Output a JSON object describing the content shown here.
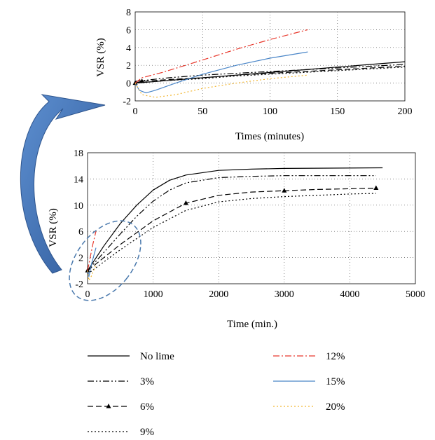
{
  "chart_data": [
    {
      "type": "line",
      "xlabel": "Times (minutes)",
      "ylabel": "VSR (%)",
      "xlim": [
        0,
        200
      ],
      "ylim": [
        -2,
        8
      ],
      "xticks": [
        0,
        50,
        100,
        150,
        200
      ],
      "yticks": [
        -2,
        0,
        2,
        4,
        6,
        8
      ],
      "grid": "dotted",
      "series": [
        {
          "name": "No lime",
          "x": [
            0,
            25,
            50,
            75,
            100,
            125,
            150,
            175,
            200
          ],
          "y": [
            0,
            0.3,
            0.6,
            0.9,
            1.2,
            1.5,
            1.8,
            2.1,
            2.4
          ]
        },
        {
          "name": "3%",
          "x": [
            0,
            25,
            50,
            75,
            100,
            125,
            150,
            175,
            200
          ],
          "y": [
            0.2,
            0.6,
            0.9,
            1.1,
            1.3,
            1.5,
            1.7,
            1.9,
            2.1
          ]
        },
        {
          "name": "6%",
          "x": [
            0,
            5,
            25,
            50,
            75,
            100,
            125,
            150,
            175,
            200
          ],
          "y": [
            0,
            0.2,
            0.4,
            0.6,
            0.9,
            1.1,
            1.3,
            1.5,
            1.7,
            1.9
          ]
        },
        {
          "name": "9%",
          "x": [
            0,
            25,
            50,
            75,
            100,
            125,
            150,
            175,
            200
          ],
          "y": [
            0,
            0.3,
            0.5,
            0.8,
            1.0,
            1.2,
            1.4,
            1.6,
            1.8
          ]
        },
        {
          "name": "12%",
          "x": [
            0,
            5,
            20,
            50,
            75,
            100,
            128
          ],
          "y": [
            0,
            0.6,
            1.2,
            2.6,
            3.8,
            4.9,
            6.0
          ]
        },
        {
          "name": "15%",
          "x": [
            0,
            3,
            8,
            15,
            30,
            50,
            75,
            100,
            128
          ],
          "y": [
            0,
            -0.8,
            -1.1,
            -0.8,
            0.0,
            1.0,
            2.0,
            2.8,
            3.5
          ]
        },
        {
          "name": "20%",
          "x": [
            0,
            5,
            15,
            30,
            50,
            75,
            100,
            128
          ],
          "y": [
            0,
            -1.3,
            -1.6,
            -1.3,
            -0.6,
            0.0,
            0.5,
            0.9
          ]
        }
      ]
    },
    {
      "type": "line",
      "xlabel": "Time (min.)",
      "ylabel": "VSR (%)",
      "xlim": [
        0,
        5000
      ],
      "ylim": [
        -2,
        18
      ],
      "xticks": [
        0,
        1000,
        2000,
        3000,
        4000,
        5000
      ],
      "yticks": [
        -2,
        2,
        6,
        10,
        14,
        18
      ],
      "grid": "dotted",
      "series": [
        {
          "name": "No lime",
          "x": [
            0,
            250,
            500,
            750,
            1000,
            1250,
            1500,
            2000,
            2500,
            3000,
            4500
          ],
          "y": [
            0,
            3.8,
            7.2,
            10.0,
            12.3,
            13.8,
            14.6,
            15.3,
            15.5,
            15.6,
            15.7
          ]
        },
        {
          "name": "3%",
          "x": [
            0,
            250,
            500,
            750,
            1000,
            1250,
            1500,
            2000,
            2500,
            3000,
            4400
          ],
          "y": [
            0,
            2.8,
            5.6,
            8.3,
            10.6,
            12.3,
            13.4,
            14.2,
            14.4,
            14.5,
            14.5
          ]
        },
        {
          "name": "6%",
          "x": [
            0,
            500,
            1000,
            1500,
            2000,
            2500,
            3000,
            3500,
            4000,
            4400
          ],
          "y": [
            0,
            4.0,
            7.6,
            10.3,
            11.5,
            12.0,
            12.2,
            12.4,
            12.5,
            12.6
          ]
        },
        {
          "name": "9%",
          "x": [
            0,
            500,
            1000,
            1500,
            2000,
            2500,
            3000,
            3500,
            4000,
            4400
          ],
          "y": [
            -0.5,
            3.2,
            6.6,
            9.2,
            10.5,
            11.0,
            11.3,
            11.5,
            11.7,
            11.8
          ]
        },
        {
          "name": "12%",
          "x": [
            0,
            40,
            80,
            128
          ],
          "y": [
            0,
            2.0,
            4.0,
            6.0
          ]
        },
        {
          "name": "15%",
          "x": [
            0,
            20,
            60,
            128
          ],
          "y": [
            0,
            -0.9,
            1.0,
            3.5
          ]
        },
        {
          "name": "20%",
          "x": [
            0,
            20,
            60,
            128
          ],
          "y": [
            0,
            -1.5,
            -0.8,
            0.9
          ]
        }
      ]
    }
  ],
  "legend": [
    {
      "name": "No lime",
      "color": "#000000",
      "dash": "solid",
      "marker": false
    },
    {
      "name": "12%",
      "color": "#e8382c",
      "dash": "dashdot",
      "marker": false
    },
    {
      "name": "3%",
      "color": "#000000",
      "dash": "dashdotdot",
      "marker": false
    },
    {
      "name": "15%",
      "color": "#4a86c8",
      "dash": "solid",
      "marker": false
    },
    {
      "name": "6%",
      "color": "#000000",
      "dash": "dashed",
      "marker": true
    },
    {
      "name": "20%",
      "color": "#f2b632",
      "dash": "dotted",
      "marker": false
    },
    {
      "name": "9%",
      "color": "#000000",
      "dash": "dotted",
      "marker": false
    }
  ],
  "arrow_color": "#3f6fb5",
  "ellipse_color": "#4a79ad"
}
